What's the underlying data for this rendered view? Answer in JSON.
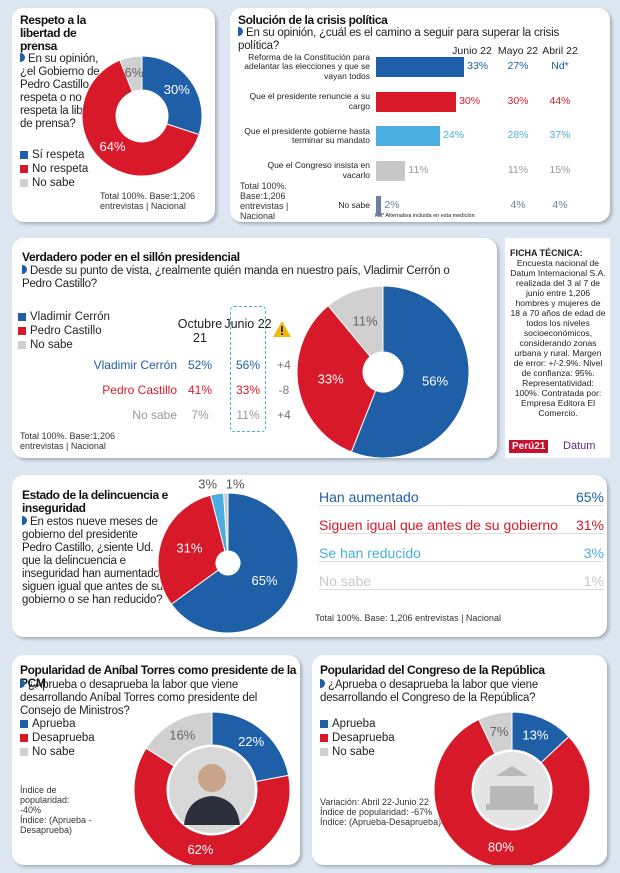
{
  "chart_data": [
    {
      "type": "pie",
      "title": "Respeto a la libertad de prensa",
      "question": "En su opinión, ¿el Gobierno de Pedro Castillo respeta o no respeta la libertad de prensa?",
      "categories": [
        "Sí respeta",
        "No respeta",
        "No sabe"
      ],
      "values": [
        30,
        64,
        6
      ],
      "value_labels": [
        "30%",
        "64%",
        "6%"
      ],
      "colors": [
        "#1f5fa8",
        "#d7192a",
        "#d0d0d0"
      ],
      "note": "Total 100%. Base:1,206 entrevistas | Nacional"
    },
    {
      "type": "bar",
      "title": "Solución de la crisis política",
      "subtitle": "En su opinión, ¿cuál es el camino a seguir para superar la crisis política?",
      "categories": [
        "Reforma de la Constitución para adelantar las elecciones y que se vayan todos",
        "Que el presidente renuncie a su cargo",
        "Que el presidente gobierne hasta terminar su mandato",
        "Que el Congreso insista en vacarlo",
        "No sabe"
      ],
      "colors": [
        "#1f5fa8",
        "#d7192a",
        "#4aaee0",
        "#c8c8c8",
        "#6b7fa0"
      ],
      "series": [
        {
          "name": "Junio 22",
          "values": [
            33,
            30,
            24,
            11,
            2
          ],
          "value_labels": [
            "33%",
            "30%",
            "24%",
            "11%",
            "2%"
          ]
        },
        {
          "name": "Mayo 22",
          "values": [
            27,
            30,
            28,
            11,
            4
          ],
          "value_labels": [
            "27%",
            "30%",
            "28%",
            "11%",
            "4%"
          ]
        },
        {
          "name": "Abril 22",
          "values": [
            null,
            44,
            37,
            15,
            4
          ],
          "value_labels": [
            "Nd*",
            "44%",
            "37%",
            "15%",
            "4%"
          ]
        }
      ],
      "note": "Total 100%. Base:1,206 entrevistas | Nacional",
      "footnote": "Nd* Alternativa incluida en esta medición"
    },
    {
      "type": "pie",
      "title": "Verdadero poder en el sillón presidencial",
      "question": "Desde su punto de vista, ¿realmente quién manda en nuestro país, Vladimir Cerrón o Pedro Castillo?",
      "categories": [
        "Vladimir Cerrón",
        "Pedro Castillo",
        "No sabe"
      ],
      "values": [
        56,
        33,
        11
      ],
      "value_labels": [
        "56%",
        "33%",
        "11%"
      ],
      "colors": [
        "#1f5fa8",
        "#d7192a",
        "#d0d0d0"
      ],
      "series": [
        {
          "name": "Octubre 21",
          "values": [
            52,
            41,
            7
          ],
          "value_labels": [
            "52%",
            "41%",
            "7%"
          ]
        },
        {
          "name": "Junio 22",
          "values": [
            56,
            33,
            11
          ],
          "value_labels": [
            "56%",
            "33%",
            "11%"
          ]
        }
      ],
      "change": {
        "values": [
          4,
          -8,
          4
        ],
        "value_labels": [
          "+4",
          "-8",
          "+4"
        ]
      },
      "note": "Total 100%. Base:1,206 entrevistas | Nacional"
    },
    {
      "type": "pie",
      "title": "Estado de la delincuencia e inseguridad",
      "question": "En estos nueve meses de gobierno del presidente Pedro Castillo, ¿siente Ud. que la delincuencia e inseguridad han aumentado, siguen igual que antes de su gobierno o se han reducido?",
      "categories": [
        "Han aumentado",
        "Siguen igual que antes de su gobierno",
        "Se han reducido",
        "No sabe"
      ],
      "values": [
        65,
        31,
        3,
        1
      ],
      "value_labels": [
        "65%",
        "31%",
        "3%",
        "1%"
      ],
      "colors": [
        "#1f5fa8",
        "#d7192a",
        "#4aaee0",
        "#c8c8c8"
      ],
      "note": "Total 100%. Base: 1,206 entrevistas | Nacional"
    },
    {
      "type": "pie",
      "title": "Popularidad de Aníbal Torres como presidente de la PCM",
      "question": "¿Aprueba o desaprueba la labor que viene desarrollando Aníbal Torres como presidente del Consejo de Ministros?",
      "categories": [
        "Aprueba",
        "Desaprueba",
        "No sabe"
      ],
      "values": [
        22,
        62,
        16
      ],
      "value_labels": [
        "22%",
        "62%",
        "16%"
      ],
      "colors": [
        "#1f5fa8",
        "#d7192a",
        "#d0d0d0"
      ],
      "notes": [
        "Índice de popularidad: -40%",
        "Índice: (Aprueba -Desaprueba)"
      ]
    },
    {
      "type": "pie",
      "title": "Popularidad del Congreso de la República",
      "question": "¿Aprueba o desaprueba la labor que viene desarrollando el Congreso de la República?",
      "categories": [
        "Aprueba",
        "Desaprueba",
        "No sabe"
      ],
      "values": [
        13,
        80,
        7
      ],
      "value_labels": [
        "13%",
        "80%",
        "7%"
      ],
      "colors": [
        "#1f5fa8",
        "#d7192a",
        "#d0d0d0"
      ],
      "notes": [
        "Variación: Abril 22-Junio 22",
        "Índice de popularidad: -67%",
        "Índice: (Aprueba-Desaprueba)"
      ]
    }
  ],
  "ficha": {
    "title": "FICHA TÉCNICA:",
    "text": "Encuesta nacional de Datum Internacional S.A. realizada del 3 al 7 de junio entre 1,206 hombres y mujeres de 18 a 70 años de edad de todos los niveles socioeconómicos, considerando zonas urbana y rural. Margen de error: +/-2.9%. Nivel de confianza: 95%. Representatividad: 100%. Contratada por: Empresa Editora El Comercio.",
    "logos": [
      "Perú21",
      "Datum"
    ]
  }
}
